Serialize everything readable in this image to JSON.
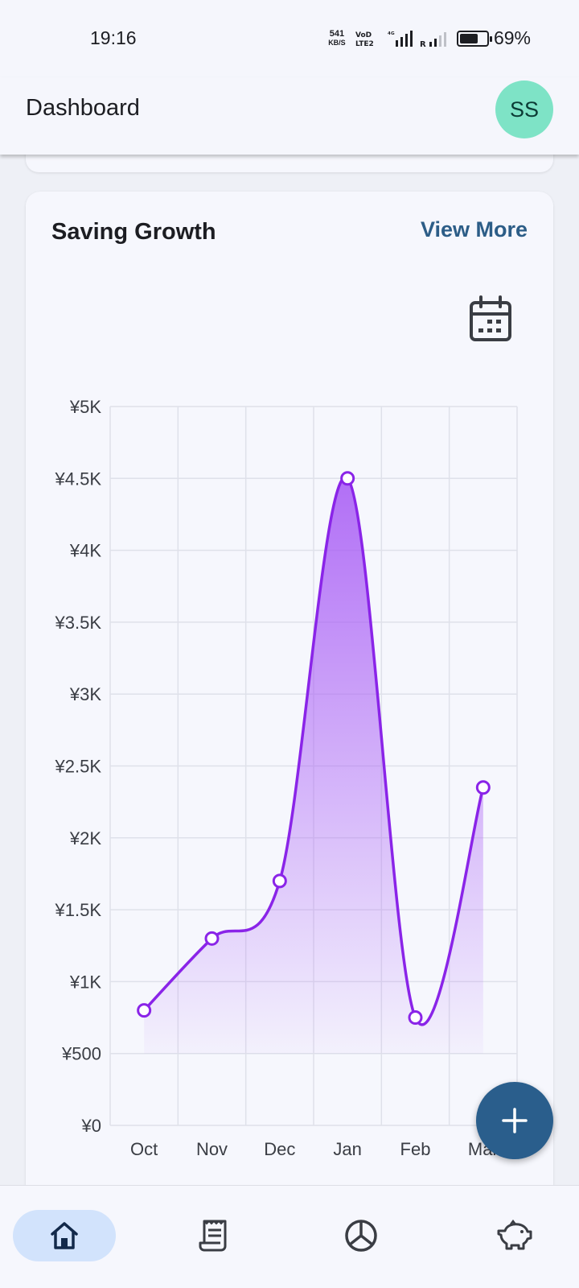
{
  "status_bar": {
    "time": "19:16",
    "net_speed_value": "541",
    "net_speed_unit": "KB/S",
    "battery_percent_label": "69%",
    "battery_level": 0.69
  },
  "app_bar": {
    "title": "Dashboard",
    "avatar_initials": "SS"
  },
  "card": {
    "title": "Saving Growth",
    "view_more_label": "View More",
    "calendar_icon": "calendar-icon"
  },
  "chart_data": {
    "type": "area",
    "categories": [
      "Oct",
      "Nov",
      "Dec",
      "Jan",
      "Feb",
      "Mar"
    ],
    "values": [
      800,
      1300,
      1700,
      4500,
      750,
      2350
    ],
    "y_tick_values": [
      0,
      500,
      1000,
      1500,
      2000,
      2500,
      3000,
      3500,
      4000,
      4500,
      5000
    ],
    "y_tick_labels": [
      "¥0",
      "¥500",
      "¥1K",
      "¥1.5K",
      "¥2K",
      "¥2.5K",
      "¥3K",
      "¥3.5K",
      "¥4K",
      "¥4.5K",
      "¥5K"
    ],
    "ylim": [
      0,
      5000
    ],
    "grid": true,
    "line_color": "#8a24e8",
    "fill_color": "#a85cf5"
  },
  "fab": {
    "icon": "plus-icon",
    "color": "#2a5e8c"
  },
  "bottom_nav": {
    "items": [
      {
        "icon": "home-icon",
        "active": true
      },
      {
        "icon": "receipt-icon",
        "active": false
      },
      {
        "icon": "pie-chart-icon",
        "active": false
      },
      {
        "icon": "piggy-bank-icon",
        "active": false
      }
    ],
    "active_color": "#d2e3fc"
  }
}
